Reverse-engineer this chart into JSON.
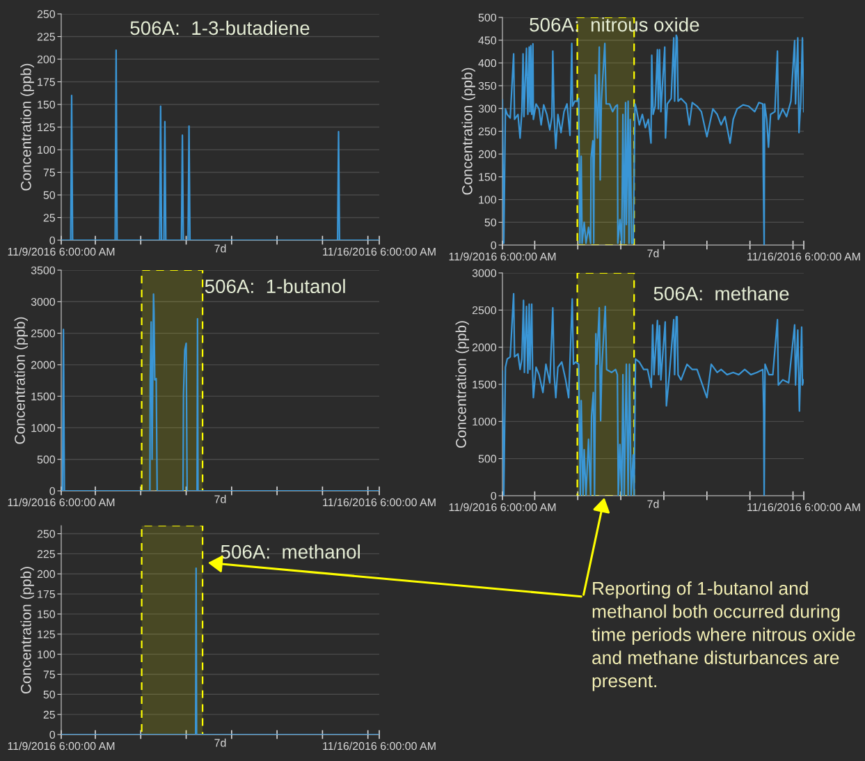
{
  "chart_data": [
    {
      "type": "line",
      "title": "506A:  1-3-butadiene",
      "ylabel": "Concentration (ppb)",
      "color": "#3a96d6",
      "grid": "y",
      "x": [
        "2016-11-09T06:00",
        "2016-11-09T11:00",
        "2016-11-09T11:30",
        "2016-11-09T12:00",
        "2016-11-10T10:30",
        "2016-11-10T11:00",
        "2016-11-10T11:30",
        "2016-11-11T10:00",
        "2016-11-11T10:30",
        "2016-11-11T11:00",
        "2016-11-11T12:15",
        "2016-11-11T12:45",
        "2016-11-11T13:15",
        "2016-11-11T21:30",
        "2016-11-11T22:00",
        "2016-11-11T22:30",
        "2016-11-12T01:00",
        "2016-11-12T01:30",
        "2016-11-12T02:00",
        "2016-11-15T08:00",
        "2016-11-15T08:30",
        "2016-11-15T09:00",
        "2016-11-16T06:00"
      ],
      "values": [
        0,
        0,
        160,
        0,
        0,
        210,
        0,
        0,
        148,
        0,
        0,
        131,
        0,
        0,
        116,
        0,
        0,
        126,
        0,
        0,
        120,
        0,
        0
      ],
      "xlim": [
        "2016-11-09T06:00",
        "2016-11-16T06:00"
      ],
      "xlabel": "7d",
      "ylim": [
        0,
        250
      ],
      "yticks": [
        0,
        25,
        50,
        75,
        100,
        125,
        150,
        175,
        200,
        225,
        250
      ],
      "xticks": [
        {
          "value": "2016-11-09T06:00",
          "label": "11/9/2016 6:00:00 AM"
        },
        {
          "value": "2016-11-10T00:00",
          "label": null
        },
        {
          "value": "2016-11-11T00:00",
          "label": null
        },
        {
          "value": "2016-11-12T00:00",
          "label": null
        },
        {
          "value": "2016-11-13T00:00",
          "label": null
        },
        {
          "value": "2016-11-14T00:00",
          "label": null
        },
        {
          "value": "2016-11-15T00:00",
          "label": null
        },
        {
          "value": "2016-11-16T00:00",
          "label": null
        },
        {
          "value": "2016-11-16T06:00",
          "label": "11/16/2016 6:00:00 AM"
        }
      ]
    },
    {
      "type": "line",
      "title": "506A:  nitrous oxide",
      "ylabel": "Concentration (ppb)",
      "color": "#3a96d6",
      "grid": "y",
      "x": [
        "2016-11-09T06:00",
        "2016-11-09T06:45",
        "2016-11-09T07:40",
        "2016-11-09T08:40",
        "2016-11-09T10:20",
        "2016-11-09T12:15",
        "2016-11-09T12:45",
        "2016-11-09T14:40",
        "2016-11-09T15:50",
        "2016-11-09T16:50",
        "2016-11-09T17:30",
        "2016-11-09T18:00",
        "2016-11-09T19:25",
        "2016-11-09T20:10",
        "2016-11-09T20:55",
        "2016-11-09T21:20",
        "2016-11-09T21:50",
        "2016-11-09T22:20",
        "2016-11-09T23:00",
        "2016-11-09T23:15",
        "2016-11-10T00:45",
        "2016-11-10T02:25",
        "2016-11-10T03:35",
        "2016-11-10T05:00",
        "2016-11-10T06:45",
        "2016-11-10T08:25",
        "2016-11-10T09:35",
        "2016-11-10T10:05",
        "2016-11-10T10:50",
        "2016-11-10T11:45",
        "2016-11-10T12:55",
        "2016-11-10T14:40",
        "2016-11-10T16:20",
        "2016-11-10T18:00",
        "2016-11-10T19:40",
        "2016-11-10T20:40",
        "2016-11-10T21:05",
        "2016-11-10T22:20",
        "2016-11-11T00:00",
        "2016-11-11T00:30",
        "2016-11-11T01:10",
        "2016-11-11T01:55",
        "2016-11-11T02:25",
        "2016-11-11T03:35",
        "2016-11-11T04:35",
        "2016-11-11T06:00",
        "2016-11-11T07:10",
        "2016-11-11T07:25",
        "2016-11-11T08:25",
        "2016-11-11T08:55",
        "2016-11-11T09:05",
        "2016-11-11T09:50",
        "2016-11-11T10:20",
        "2016-11-11T11:00",
        "2016-11-11T12:00",
        "2016-11-11T12:30",
        "2016-11-11T13:10",
        "2016-11-11T15:05",
        "2016-11-11T15:50",
        "2016-11-11T17:45",
        "2016-11-11T19:25",
        "2016-11-11T21:05",
        "2016-11-11T22:05",
        "2016-11-11T22:20",
        "2016-11-11T23:30",
        "2016-11-12T00:30",
        "2016-11-12T01:10",
        "2016-11-12T01:55",
        "2016-11-12T02:40",
        "2016-11-12T03:05",
        "2016-11-12T04:05",
        "2016-11-12T04:35",
        "2016-11-12T05:15",
        "2016-11-12T06:00",
        "2016-11-12T06:55",
        "2016-11-12T07:55",
        "2016-11-12T08:40",
        "2016-11-12T10:20",
        "2016-11-12T12:00",
        "2016-11-12T13:40",
        "2016-11-12T15:20",
        "2016-11-12T16:50",
        "2016-11-12T17:15",
        "2016-11-12T18:00",
        "2016-11-12T19:10",
        "2016-11-12T20:25",
        "2016-11-12T20:55",
        "2016-11-12T21:35",
        "2016-11-12T22:20",
        "2016-11-13T00:30",
        "2016-11-13T00:55",
        "2016-11-13T01:55",
        "2016-11-13T04:05",
        "2016-11-13T05:30",
        "2016-11-13T06:00",
        "2016-11-13T06:55",
        "2016-11-13T07:25",
        "2016-11-13T07:55",
        "2016-11-13T09:35",
        "2016-11-13T12:30",
        "2016-11-13T14:10",
        "2016-11-13T15:50",
        "2016-11-13T18:30",
        "2016-11-13T20:55",
        "2016-11-14T00:00",
        "2016-11-14T03:20",
        "2016-11-14T05:45",
        "2016-11-14T07:55",
        "2016-11-14T10:05",
        "2016-11-14T12:55",
        "2016-11-14T14:40",
        "2016-11-14T16:50",
        "2016-11-14T20:10",
        "2016-11-14T23:15",
        "2016-11-15T02:40",
        "2016-11-15T05:00",
        "2016-11-15T07:10",
        "2016-11-15T07:25",
        "2016-11-15T07:55",
        "2016-11-15T08:10",
        "2016-11-15T09:20",
        "2016-11-15T10:20",
        "2016-11-15T11:30",
        "2016-11-15T13:55",
        "2016-11-15T15:20",
        "2016-11-15T15:50",
        "2016-11-15T18:15",
        "2016-11-15T20:25",
        "2016-11-15T22:50",
        "2016-11-16T00:55",
        "2016-11-16T01:25",
        "2016-11-16T02:40",
        "2016-11-16T03:20",
        "2016-11-16T04:20",
        "2016-11-16T05:15",
        "2016-11-16T06:00"
      ],
      "values": [
        319,
        4,
        299,
        287,
        279,
        420,
        276,
        287,
        235,
        293,
        420,
        282,
        432,
        287,
        435,
        293,
        438,
        287,
        442,
        276,
        310,
        299,
        264,
        308,
        287,
        253,
        282,
        426,
        282,
        212,
        287,
        247,
        293,
        310,
        241,
        443,
        305,
        316,
        316,
        322,
        4,
        195,
        4,
        50,
        4,
        39,
        4,
        192,
        229,
        4,
        160,
        374,
        316,
        235,
        435,
        143,
        316,
        443,
        310,
        310,
        293,
        305,
        308,
        4,
        56,
        4,
        287,
        4,
        313,
        45,
        316,
        4,
        276,
        4,
        4,
        310,
        299,
        264,
        287,
        258,
        276,
        224,
        417,
        287,
        305,
        429,
        299,
        429,
        293,
        435,
        235,
        310,
        322,
        455,
        316,
        461,
        455,
        316,
        322,
        310,
        264,
        313,
        305,
        293,
        238,
        299,
        287,
        264,
        282,
        224,
        276,
        299,
        308,
        305,
        293,
        313,
        310,
        160,
        0,
        310,
        276,
        215,
        287,
        293,
        426,
        276,
        299,
        282,
        316,
        449,
        310,
        455,
        247,
        316,
        455,
        293
      ],
      "xlim": [
        "2016-11-09T06:00",
        "2016-11-16T06:00"
      ],
      "bands": [
        {
          "axis": "x",
          "from": "2016-11-10T23:45",
          "to": "2016-11-12T07:25",
          "color": "#ffff00"
        }
      ],
      "xlabel": "7d",
      "ylim": [
        0,
        500
      ],
      "yticks": [
        0,
        50,
        100,
        150,
        200,
        250,
        300,
        350,
        400,
        450,
        500
      ],
      "xticks": [
        {
          "value": "2016-11-09T06:00",
          "label": "11/9/2016 6:00:00 AM"
        },
        {
          "value": "2016-11-10T00:00",
          "label": null
        },
        {
          "value": "2016-11-11T00:00",
          "label": null
        },
        {
          "value": "2016-11-12T00:00",
          "label": null
        },
        {
          "value": "2016-11-13T00:00",
          "label": null
        },
        {
          "value": "2016-11-14T00:00",
          "label": null
        },
        {
          "value": "2016-11-15T00:00",
          "label": null
        },
        {
          "value": "2016-11-16T00:00",
          "label": null
        },
        {
          "value": "2016-11-16T06:00",
          "label": "11/16/2016 6:00:00 AM"
        }
      ]
    },
    {
      "type": "line",
      "title": "506A:  1-butanol",
      "ylabel": "Concentration (ppb)",
      "color": "#3a96d6",
      "grid": "y",
      "x": [
        "2016-11-09T06:00",
        "2016-11-09T06:40",
        "2016-11-09T07:10",
        "2016-11-09T07:40",
        "2016-11-11T04:50",
        "2016-11-11T05:00",
        "2016-11-11T05:30",
        "2016-11-11T06:00",
        "2016-11-11T06:45",
        "2016-11-11T07:00",
        "2016-11-11T07:25",
        "2016-11-11T08:10",
        "2016-11-11T08:40",
        "2016-11-11T22:20",
        "2016-11-11T22:35",
        "2016-11-11T23:15",
        "2016-11-12T00:00",
        "2016-11-12T00:30",
        "2016-11-12T05:45",
        "2016-11-12T06:00",
        "2016-11-12T06:15",
        "2016-11-16T06:00"
      ],
      "values": [
        0,
        0,
        2560,
        0,
        0,
        1770,
        2680,
        500,
        3120,
        2850,
        1760,
        1780,
        0,
        0,
        1530,
        2230,
        2340,
        0,
        0,
        2730,
        0,
        0
      ],
      "xlim": [
        "2016-11-09T06:00",
        "2016-11-16T06:00"
      ],
      "bands": [
        {
          "axis": "x",
          "from": "2016-11-11T00:30",
          "to": "2016-11-12T08:40",
          "color": "#ffff00"
        }
      ],
      "xlabel": "7d",
      "ylim": [
        0,
        3500
      ],
      "yticks": [
        0,
        500,
        1000,
        1500,
        2000,
        2500,
        3000,
        3500
      ],
      "xticks": [
        {
          "value": "2016-11-09T06:00",
          "label": "11/9/2016 6:00:00 AM"
        },
        {
          "value": "2016-11-10T00:00",
          "label": null
        },
        {
          "value": "2016-11-11T00:00",
          "label": null
        },
        {
          "value": "2016-11-12T00:00",
          "label": null
        },
        {
          "value": "2016-11-13T00:00",
          "label": null
        },
        {
          "value": "2016-11-14T00:00",
          "label": null
        },
        {
          "value": "2016-11-15T00:00",
          "label": null
        },
        {
          "value": "2016-11-16T00:00",
          "label": null
        },
        {
          "value": "2016-11-16T06:00",
          "label": "11/16/2016 6:00:00 AM"
        }
      ]
    },
    {
      "type": "line",
      "title": "506A:  methane",
      "ylabel": "Concentration (ppb)",
      "color": "#3a96d6",
      "grid": "y",
      "x": [
        "2016-11-09T06:00",
        "2016-11-09T06:45",
        "2016-11-09T07:40",
        "2016-11-09T08:40",
        "2016-11-09T10:20",
        "2016-11-09T12:15",
        "2016-11-09T12:45",
        "2016-11-09T14:40",
        "2016-11-09T15:50",
        "2016-11-09T16:50",
        "2016-11-09T17:45",
        "2016-11-09T18:15",
        "2016-11-09T19:25",
        "2016-11-09T20:10",
        "2016-11-09T20:55",
        "2016-11-09T21:20",
        "2016-11-09T22:20",
        "2016-11-09T22:50",
        "2016-11-09T23:15",
        "2016-11-10T00:45",
        "2016-11-10T02:25",
        "2016-11-10T04:35",
        "2016-11-10T06:15",
        "2016-11-10T08:25",
        "2016-11-10T10:05",
        "2016-11-10T10:50",
        "2016-11-10T11:45",
        "2016-11-10T12:55",
        "2016-11-10T15:05",
        "2016-11-10T17:15",
        "2016-11-10T18:55",
        "2016-11-10T20:55",
        "2016-11-10T21:35",
        "2016-11-10T22:50",
        "2016-11-11T00:30",
        "2016-11-11T01:25",
        "2016-11-11T01:55",
        "2016-11-11T02:55",
        "2016-11-11T03:35",
        "2016-11-11T04:35",
        "2016-11-11T06:00",
        "2016-11-11T07:10",
        "2016-11-11T07:40",
        "2016-11-11T08:40",
        "2016-11-11T09:20",
        "2016-11-11T10:05",
        "2016-11-11T10:35",
        "2016-11-11T12:00",
        "2016-11-11T12:45",
        "2016-11-11T13:25",
        "2016-11-11T15:20",
        "2016-11-11T16:05",
        "2016-11-11T18:55",
        "2016-11-11T21:05",
        "2016-11-11T22:05",
        "2016-11-11T22:35",
        "2016-11-11T23:30",
        "2016-11-12T00:30",
        "2016-11-12T01:10",
        "2016-11-12T01:55",
        "2016-11-12T03:05",
        "2016-11-12T04:05",
        "2016-11-12T04:50",
        "2016-11-12T05:45",
        "2016-11-12T06:55",
        "2016-11-12T07:25",
        "2016-11-12T08:10",
        "2016-11-12T10:20",
        "2016-11-12T12:45",
        "2016-11-12T14:55",
        "2016-11-12T17:00",
        "2016-11-12T17:45",
        "2016-11-12T18:30",
        "2016-11-12T20:25",
        "2016-11-12T21:05",
        "2016-11-12T21:35",
        "2016-11-12T22:20",
        "2016-11-13T00:45",
        "2016-11-13T01:25",
        "2016-11-13T03:05",
        "2016-11-13T05:30",
        "2016-11-13T06:00",
        "2016-11-13T06:55",
        "2016-11-13T07:25",
        "2016-11-13T07:55",
        "2016-11-13T09:35",
        "2016-11-13T12:55",
        "2016-11-13T15:50",
        "2016-11-13T18:30",
        "2016-11-14T00:00",
        "2016-11-14T02:25",
        "2016-11-14T05:45",
        "2016-11-14T07:55",
        "2016-11-14T11:15",
        "2016-11-14T14:40",
        "2016-11-14T17:45",
        "2016-11-14T21:05",
        "2016-11-15T00:30",
        "2016-11-15T03:50",
        "2016-11-15T07:10",
        "2016-11-15T07:40",
        "2016-11-15T07:55",
        "2016-11-15T08:25",
        "2016-11-15T10:35",
        "2016-11-15T12:45",
        "2016-11-15T15:20",
        "2016-11-15T15:50",
        "2016-11-15T18:15",
        "2016-11-15T21:35",
        "2016-11-16T00:55",
        "2016-11-16T01:25",
        "2016-11-16T02:40",
        "2016-11-16T03:35",
        "2016-11-16T04:50",
        "2016-11-16T05:15",
        "2016-11-16T06:00"
      ],
      "values": [
        1680,
        0,
        1730,
        1840,
        1870,
        2720,
        1870,
        1910,
        1700,
        1840,
        2630,
        1660,
        2550,
        1650,
        2580,
        1700,
        2580,
        1630,
        1320,
        1730,
        1630,
        1390,
        1770,
        1520,
        2530,
        1630,
        1320,
        1730,
        1800,
        1560,
        1320,
        2650,
        1770,
        1800,
        1770,
        0,
        1280,
        0,
        620,
        0,
        760,
        0,
        1070,
        1390,
        0,
        2180,
        1770,
        2530,
        1010,
        1730,
        2550,
        1700,
        1660,
        1700,
        1630,
        0,
        690,
        0,
        1630,
        0,
        1770,
        0,
        1770,
        0,
        550,
        0,
        1840,
        1800,
        1700,
        1700,
        1460,
        2300,
        1630,
        2360,
        1630,
        2290,
        1560,
        2340,
        1210,
        1630,
        2370,
        1630,
        2410,
        2410,
        1630,
        1560,
        1770,
        1700,
        1700,
        1320,
        1770,
        1660,
        1700,
        1630,
        1660,
        1630,
        1700,
        1630,
        1660,
        1700,
        1130,
        0,
        1770,
        1630,
        1630,
        2370,
        1490,
        1560,
        1520,
        2300,
        1490,
        2230,
        1140,
        2270,
        1490,
        1560
      ],
      "xlim": [
        "2016-11-09T06:00",
        "2016-11-16T06:00"
      ],
      "bands": [
        {
          "axis": "x",
          "from": "2016-11-10T23:45",
          "to": "2016-11-12T07:25",
          "color": "#ffff00"
        }
      ],
      "xlabel": "7d",
      "ylim": [
        0,
        3000
      ],
      "yticks": [
        0,
        500,
        1000,
        1500,
        2000,
        2500,
        3000
      ],
      "xticks": [
        {
          "value": "2016-11-09T06:00",
          "label": "11/9/2016 6:00:00 AM"
        },
        {
          "value": "2016-11-10T00:00",
          "label": null
        },
        {
          "value": "2016-11-11T00:00",
          "label": null
        },
        {
          "value": "2016-11-12T00:00",
          "label": null
        },
        {
          "value": "2016-11-13T00:00",
          "label": null
        },
        {
          "value": "2016-11-14T00:00",
          "label": null
        },
        {
          "value": "2016-11-15T00:00",
          "label": null
        },
        {
          "value": "2016-11-16T00:00",
          "label": null
        },
        {
          "value": "2016-11-16T06:00",
          "label": "11/16/2016 6:00:00 AM"
        }
      ]
    },
    {
      "type": "line",
      "title": "506A:  methanol",
      "ylabel": "Concentration (ppb)",
      "color": "#3a96d6",
      "grid": "y",
      "x": [
        "2016-11-09T06:00",
        "2016-11-12T05:00",
        "2016-11-12T05:15",
        "2016-11-12T05:30",
        "2016-11-16T06:00"
      ],
      "values": [
        0,
        0,
        207,
        0,
        0
      ],
      "xlim": [
        "2016-11-09T06:00",
        "2016-11-16T06:00"
      ],
      "bands": [
        {
          "axis": "x",
          "from": "2016-11-11T00:30",
          "to": "2016-11-12T08:40",
          "color": "#ffff00"
        }
      ],
      "xlabel": "7d",
      "ylim": [
        0,
        260
      ],
      "yticks": [
        0,
        25,
        50,
        75,
        100,
        125,
        150,
        175,
        200,
        225,
        250
      ],
      "xticks": [
        {
          "value": "2016-11-09T06:00",
          "label": "11/9/2016 6:00:00 AM"
        },
        {
          "value": "2016-11-10T00:00",
          "label": null
        },
        {
          "value": "2016-11-11T00:00",
          "label": null
        },
        {
          "value": "2016-11-12T00:00",
          "label": null
        },
        {
          "value": "2016-11-13T00:00",
          "label": null
        },
        {
          "value": "2016-11-14T00:00",
          "label": null
        },
        {
          "value": "2016-11-15T00:00",
          "label": null
        },
        {
          "value": "2016-11-16T00:00",
          "label": null
        },
        {
          "value": "2016-11-16T06:00",
          "label": "11/16/2016 6:00:00 AM"
        }
      ],
      "annotations": [
        "Reporting of 1-butanol and methanol both occurred during time periods where nitrous oxide and methane disturbances are present."
      ]
    }
  ]
}
